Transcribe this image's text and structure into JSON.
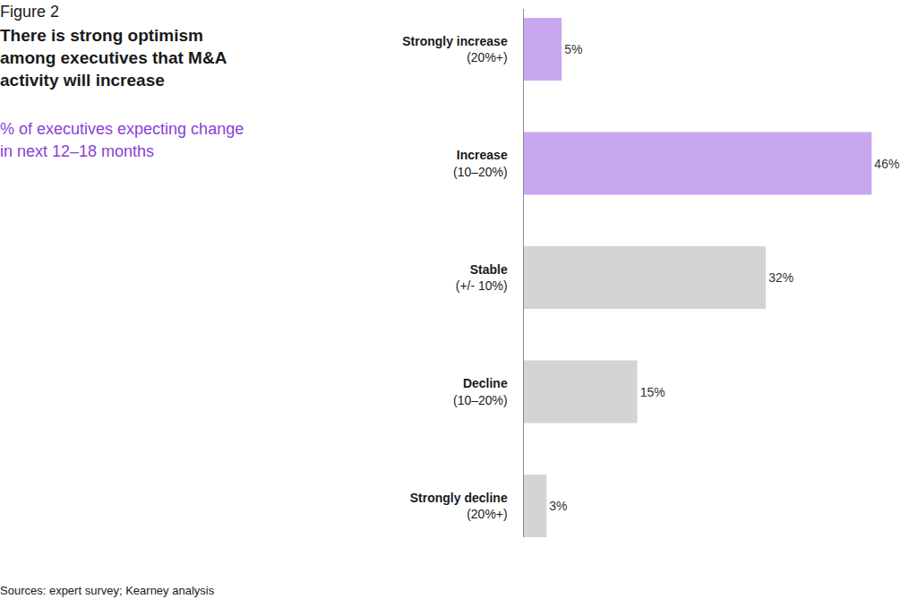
{
  "chart_data": {
    "type": "bar",
    "orientation": "horizontal",
    "figure_label": "Figure 2",
    "title": "There is strong optimism among executives that M&A activity will increase",
    "subtitle": "% of executives expecting change in next 12–18 months",
    "source": "Sources: expert survey; Kearney analysis",
    "categories": [
      "Strongly increase",
      "Increase",
      "Stable",
      "Decline",
      "Strongly decline"
    ],
    "category_notes": [
      "(20%+)",
      "(10–20%)",
      "(+/- 10%)",
      "(10–20%)",
      "(20%+)"
    ],
    "values": [
      5,
      46,
      32,
      15,
      3
    ],
    "value_labels": [
      "5%",
      "46%",
      "32%",
      "15%",
      "3%"
    ],
    "data_labels": true,
    "colors": [
      "#c9a7f0",
      "#c9a7f0",
      "#d4d4d4",
      "#d4d4d4",
      "#d4d4d4"
    ],
    "xlim": [
      0,
      52
    ],
    "tick_labels": "y",
    "grid": false
  }
}
